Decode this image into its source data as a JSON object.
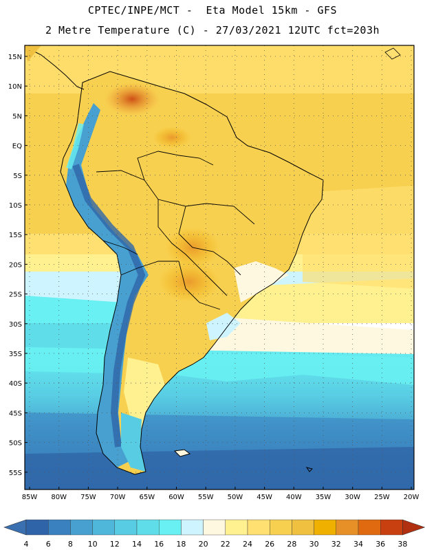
{
  "header": {
    "line1": "CPTEC/INPE/MCT -  Eta Model 15km - GFS",
    "line2": "2 Metre Temperature (C) - 27/03/2021 12UTC fct=203h"
  },
  "axes": {
    "lat_labels": [
      "15N",
      "10N",
      "5N",
      "EQ",
      "5S",
      "10S",
      "15S",
      "20S",
      "25S",
      "30S",
      "35S",
      "40S",
      "45S",
      "50S",
      "55S"
    ],
    "lon_labels": [
      "85W",
      "80W",
      "75W",
      "70W",
      "65W",
      "60W",
      "55W",
      "50W",
      "45W",
      "40W",
      "35W",
      "30W",
      "25W",
      "20W"
    ]
  },
  "colorbar": {
    "labels": [
      "4",
      "6",
      "8",
      "10",
      "12",
      "14",
      "16",
      "18",
      "20",
      "22",
      "24",
      "26",
      "28",
      "30",
      "32",
      "34",
      "36",
      "38"
    ],
    "under_color": "#3a70b0",
    "over_color": "#b03010",
    "colors": [
      "#2f65a8",
      "#3a82bf",
      "#47a0cf",
      "#4fb8da",
      "#58cce3",
      "#5fdeea",
      "#68f0f2",
      "#cef4ff",
      "#fff8e0",
      "#fff090",
      "#ffe070",
      "#f8d050",
      "#f0c040",
      "#f0b000",
      "#e89028",
      "#e06a10",
      "#c84010"
    ]
  }
}
